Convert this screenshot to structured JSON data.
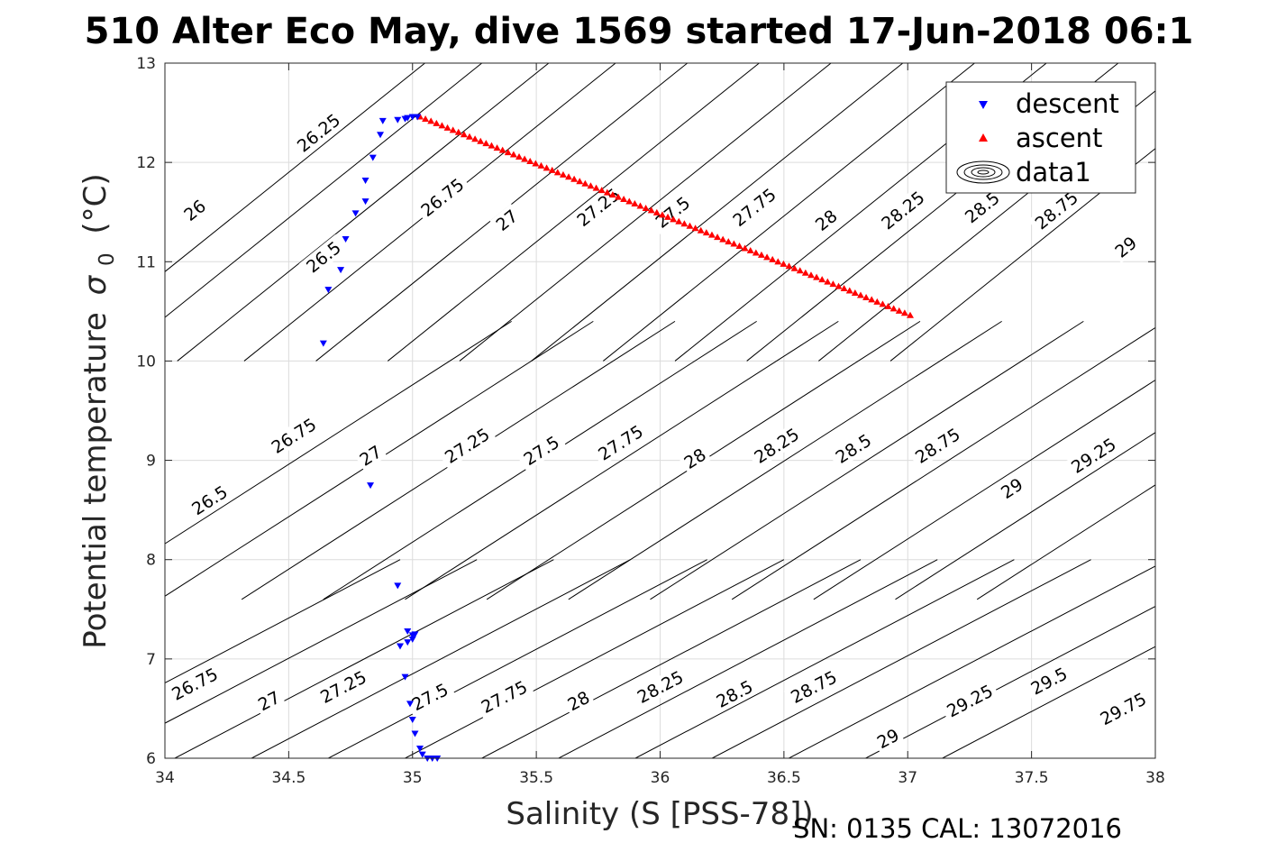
{
  "chart_data": {
    "type": "scatter",
    "title": "510 Alter Eco May, dive 1569 started 17-Jun-2018 06:1",
    "xlabel": "Salinity (S [PSS-78])",
    "ylabel": "Potential temperature",
    "ylabel_symbol": "σ",
    "ylabel_subscript": "0",
    "ylabel_unit": "(°C)",
    "xlim": [
      34,
      38
    ],
    "ylim": [
      6,
      13
    ],
    "xticks": [
      "34",
      "34.5",
      "35",
      "35.5",
      "36",
      "36.5",
      "37",
      "37.5",
      "38"
    ],
    "yticks": [
      "6",
      "7",
      "8",
      "9",
      "10",
      "11",
      "12",
      "13"
    ],
    "grid": true,
    "legend_position": "top-right",
    "legend": [
      "descent",
      "ascent",
      "data1"
    ],
    "footer": "SN: 0135  CAL: 13072016",
    "colors": {
      "descent": "#0000ff",
      "ascent": "#ff0000",
      "contour": "#000000",
      "grid": "#dcdcdc"
    },
    "series": [
      {
        "name": "descent",
        "marker": "triangle-down",
        "points": [
          [
            34.64,
            10.18
          ],
          [
            34.66,
            10.72
          ],
          [
            34.71,
            10.92
          ],
          [
            34.73,
            11.23
          ],
          [
            34.77,
            11.49
          ],
          [
            34.81,
            11.61
          ],
          [
            34.81,
            11.82
          ],
          [
            34.84,
            12.05
          ],
          [
            34.87,
            12.28
          ],
          [
            34.88,
            12.42
          ],
          [
            34.94,
            12.43
          ],
          [
            34.97,
            12.44
          ],
          [
            34.98,
            12.45
          ],
          [
            35.0,
            12.46
          ],
          [
            35.02,
            12.46
          ],
          [
            34.83,
            8.75
          ],
          [
            34.94,
            7.74
          ],
          [
            34.98,
            7.28
          ],
          [
            34.95,
            7.13
          ],
          [
            34.98,
            7.17
          ],
          [
            35.0,
            7.2
          ],
          [
            35.0,
            7.24
          ],
          [
            35.01,
            7.25
          ],
          [
            34.97,
            6.82
          ],
          [
            34.99,
            6.55
          ],
          [
            35.0,
            6.39
          ],
          [
            35.01,
            6.25
          ],
          [
            35.03,
            6.1
          ],
          [
            35.04,
            6.04
          ],
          [
            35.06,
            6.0
          ],
          [
            35.08,
            6.0
          ],
          [
            35.1,
            6.0
          ]
        ]
      },
      {
        "name": "ascent",
        "marker": "triangle-up",
        "start": [
          35.03,
          12.46
        ],
        "end": [
          37.01,
          10.46
        ],
        "count": 90
      }
    ],
    "contour_series": {
      "name": "data1",
      "type": "density contours"
    },
    "contours_left": [
      {
        "label": "26.75",
        "s0": 33.42,
        "s1": 34.95,
        "lx": 34.12,
        "ly": 6.75
      },
      {
        "label": "27",
        "s0": 33.73,
        "s1": 35.26,
        "lx": 34.42,
        "ly": 6.58
      },
      {
        "label": "27.25",
        "s0": 34.04,
        "s1": 35.57,
        "lx": 34.72,
        "ly": 6.72
      },
      {
        "label": "27.5",
        "s0": 34.35,
        "s1": 35.88,
        "lx": 35.07,
        "ly": 6.62
      },
      {
        "label": "27.75",
        "s0": 34.66,
        "s1": 36.19,
        "lx": 35.37,
        "ly": 6.62
      },
      {
        "label": "28",
        "s0": 34.97,
        "s1": 36.5,
        "lx": 35.67,
        "ly": 6.58
      },
      {
        "label": "28.25",
        "s0": 35.28,
        "s1": 36.81,
        "lx": 36.0,
        "ly": 6.72
      },
      {
        "label": "28.5",
        "s0": 35.59,
        "s1": 37.12,
        "lx": 36.3,
        "ly": 6.65
      },
      {
        "label": "28.75",
        "s0": 35.9,
        "s1": 37.43,
        "lx": 36.62,
        "ly": 6.72
      },
      {
        "label": "29",
        "s0": 36.21,
        "s1": 37.74,
        "lx": 36.92,
        "ly": 6.2
      },
      {
        "label": "29.25",
        "s0": 36.52,
        "s1": 38.05,
        "lx": 37.25,
        "ly": 6.58
      },
      {
        "label": "29.5",
        "s0": 36.83,
        "s1": 38.36,
        "lx": 37.57,
        "ly": 6.78
      },
      {
        "label": "29.75",
        "s0": 37.14,
        "s1": 38.67,
        "lx": 37.87,
        "ly": 6.5
      }
    ],
    "contours_mid": [
      {
        "label": "26.5",
        "s0": 33.65,
        "s1": 35.4,
        "lx": 34.18,
        "ly": 8.6
      },
      {
        "label": "26.75",
        "s0": 33.98,
        "s1": 35.73,
        "lx": 34.52,
        "ly": 9.25
      },
      {
        "label": "27",
        "s0": 34.31,
        "s1": 36.06,
        "lx": 34.83,
        "ly": 9.05
      },
      {
        "label": "27.25",
        "s0": 34.64,
        "s1": 36.39,
        "lx": 35.22,
        "ly": 9.15
      },
      {
        "label": "27.5",
        "s0": 34.97,
        "s1": 36.72,
        "lx": 35.52,
        "ly": 9.1
      },
      {
        "label": "27.75",
        "s0": 35.3,
        "s1": 37.05,
        "lx": 35.84,
        "ly": 9.18
      },
      {
        "label": "28",
        "s0": 35.63,
        "s1": 37.38,
        "lx": 36.14,
        "ly": 9.02
      },
      {
        "label": "28.25",
        "s0": 35.96,
        "s1": 37.71,
        "lx": 36.47,
        "ly": 9.15
      },
      {
        "label": "28.5",
        "s0": 36.29,
        "s1": 38.04,
        "lx": 36.78,
        "ly": 9.12
      },
      {
        "label": "28.75",
        "s0": 36.62,
        "s1": 38.37,
        "lx": 37.12,
        "ly": 9.15
      },
      {
        "label": "29",
        "s0": 36.95,
        "s1": 38.7,
        "lx": 37.42,
        "ly": 8.72
      },
      {
        "label": "29.25",
        "s0": 37.28,
        "s1": 39.03,
        "lx": 37.75,
        "ly": 9.05
      }
    ],
    "contours_top": [
      {
        "label": "26",
        "s0": 33.55,
        "s1": 35.05,
        "lx": 34.12,
        "ly": 11.52
      },
      {
        "label": "26.25",
        "s0": 33.78,
        "s1": 35.28,
        "lx": 34.62,
        "ly": 12.3
      },
      {
        "label": "26.5",
        "s0": 34.05,
        "s1": 35.55,
        "lx": 34.64,
        "ly": 11.05
      },
      {
        "label": "26.75",
        "s0": 34.32,
        "s1": 35.82,
        "lx": 35.12,
        "ly": 11.65
      },
      {
        "label": "27",
        "s0": 34.61,
        "s1": 36.11,
        "lx": 35.38,
        "ly": 11.42
      },
      {
        "label": "27.25",
        "s0": 34.9,
        "s1": 36.4,
        "lx": 35.75,
        "ly": 11.55
      },
      {
        "label": "27.5",
        "s0": 35.19,
        "s1": 36.69,
        "lx": 36.05,
        "ly": 11.5
      },
      {
        "label": "27.75",
        "s0": 35.48,
        "s1": 36.98,
        "lx": 36.38,
        "ly": 11.55
      },
      {
        "label": "28",
        "s0": 35.77,
        "s1": 37.27,
        "lx": 36.67,
        "ly": 11.42
      },
      {
        "label": "28.25",
        "s0": 36.06,
        "s1": 37.56,
        "lx": 36.98,
        "ly": 11.52
      },
      {
        "label": "28.5",
        "s0": 36.35,
        "s1": 37.85,
        "lx": 37.3,
        "ly": 11.55
      },
      {
        "label": "28.75",
        "s0": 36.64,
        "s1": 38.14,
        "lx": 37.6,
        "ly": 11.52
      },
      {
        "label": "29",
        "s0": 36.93,
        "s1": 38.43,
        "lx": 37.88,
        "ly": 11.15
      }
    ]
  }
}
